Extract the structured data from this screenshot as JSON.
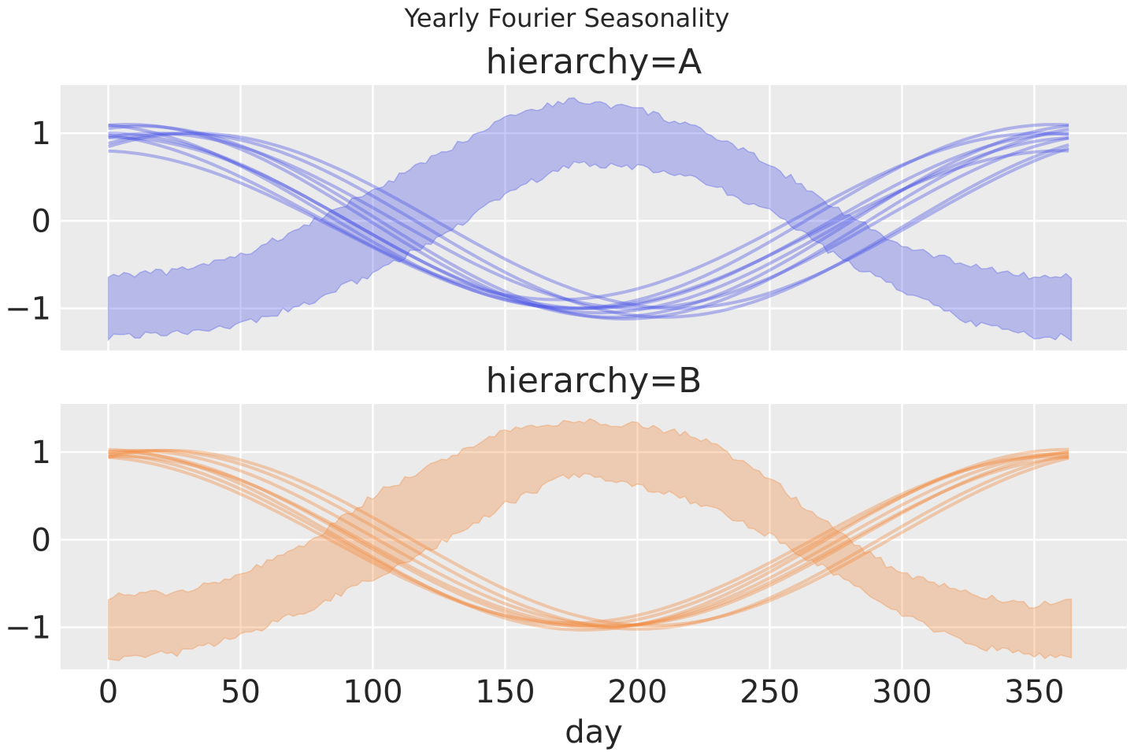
{
  "figure": {
    "suptitle": "Yearly Fourier Seasonality",
    "xlabel": "day"
  },
  "style": {
    "plot_background": "#ebebeb",
    "grid_color": "#ffffff"
  },
  "chart_data": [
    {
      "type": "line",
      "title": "hierarchy=A",
      "color": "#4a55e6",
      "xlim": [
        -18,
        385
      ],
      "ylim": [
        -1.48,
        1.55
      ],
      "xticks": [
        0,
        50,
        100,
        150,
        200,
        250,
        300,
        350
      ],
      "yticks": [
        -1,
        0,
        1
      ],
      "ytick_labels": [
        "−1",
        "0",
        "1"
      ],
      "show_x_tick_labels": false,
      "band": {
        "x": [
          0,
          25,
          50,
          75,
          100,
          125,
          150,
          175,
          200,
          225,
          250,
          275,
          300,
          325,
          350,
          365
        ],
        "lower": [
          -1.33,
          -1.28,
          -1.18,
          -0.95,
          -0.6,
          -0.2,
          0.3,
          0.65,
          0.62,
          0.45,
          0.1,
          -0.4,
          -0.8,
          -1.15,
          -1.32,
          -1.33
        ],
        "upper": [
          -0.62,
          -0.58,
          -0.4,
          -0.05,
          0.35,
          0.75,
          1.2,
          1.38,
          1.28,
          1.02,
          0.65,
          0.15,
          -0.3,
          -0.5,
          -0.65,
          -0.62
        ]
      },
      "series": [
        {
          "amp": 1.1,
          "peak": 190,
          "offset": 0.0
        },
        {
          "amp": 1.0,
          "peak": 182,
          "offset": 0.0
        },
        {
          "amp": 1.05,
          "peak": 175,
          "offset": 0.05
        },
        {
          "amp": 1.0,
          "peak": 200,
          "offset": 0.0
        },
        {
          "amp": 0.9,
          "peak": 178,
          "offset": -0.1
        },
        {
          "amp": 1.05,
          "peak": 210,
          "offset": -0.05
        },
        {
          "amp": 1.0,
          "peak": 185,
          "offset": -0.05
        },
        {
          "amp": 0.95,
          "peak": 170,
          "offset": 0.05
        },
        {
          "amp": 1.1,
          "peak": 195,
          "offset": -0.02
        },
        {
          "amp": 1.0,
          "peak": 215,
          "offset": 0.0
        }
      ]
    },
    {
      "type": "line",
      "title": "hierarchy=B",
      "color": "#f28a3c",
      "xlim": [
        -18,
        385
      ],
      "ylim": [
        -1.48,
        1.55
      ],
      "xticks": [
        0,
        50,
        100,
        150,
        200,
        250,
        300,
        350
      ],
      "yticks": [
        -1,
        0,
        1
      ],
      "ytick_labels": [
        "−1",
        "0",
        "1"
      ],
      "xtick_labels": [
        "0",
        "50",
        "100",
        "150",
        "200",
        "250",
        "300",
        "350"
      ],
      "show_x_tick_labels": true,
      "band": {
        "x": [
          0,
          25,
          50,
          75,
          100,
          125,
          150,
          175,
          200,
          225,
          250,
          275,
          300,
          325,
          350,
          365
        ],
        "lower": [
          -1.35,
          -1.3,
          -1.1,
          -0.8,
          -0.45,
          -0.05,
          0.4,
          0.75,
          0.62,
          0.4,
          0.05,
          -0.4,
          -0.85,
          -1.2,
          -1.32,
          -1.35
        ],
        "upper": [
          -0.65,
          -0.6,
          -0.4,
          -0.05,
          0.5,
          0.9,
          1.25,
          1.35,
          1.32,
          1.15,
          0.7,
          0.1,
          -0.4,
          -0.6,
          -0.75,
          -0.7
        ]
      },
      "series": [
        {
          "amp": 1.0,
          "peak": 185,
          "offset": 0.0
        },
        {
          "amp": 0.98,
          "peak": 178,
          "offset": 0.0
        },
        {
          "amp": 1.0,
          "peak": 192,
          "offset": 0.02
        },
        {
          "amp": 1.02,
          "peak": 200,
          "offset": 0.0
        },
        {
          "amp": 0.95,
          "peak": 175,
          "offset": 0.0
        },
        {
          "amp": 1.0,
          "peak": 205,
          "offset": 0.02
        },
        {
          "amp": 0.97,
          "peak": 188,
          "offset": -0.02
        },
        {
          "amp": 1.03,
          "peak": 180,
          "offset": 0.0
        }
      ]
    }
  ]
}
